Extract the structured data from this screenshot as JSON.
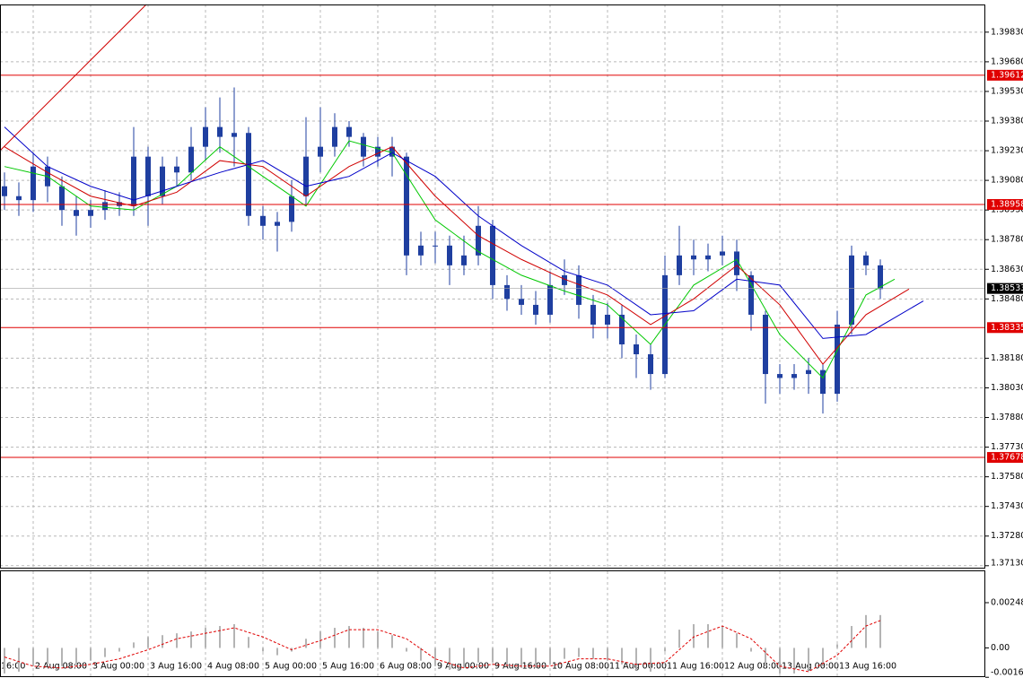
{
  "chart_data": [
    {
      "type": "candlestick",
      "color": "#1f3fa0",
      "open": [
        1.3905,
        1.39,
        1.3898,
        1.3915,
        1.3905,
        1.3893,
        1.389,
        1.3893,
        1.3897,
        1.3895,
        1.392,
        1.39,
        1.3915,
        1.3912,
        1.3925,
        1.3935,
        1.393,
        1.3932,
        1.389,
        1.3885,
        1.3887,
        1.39,
        1.392,
        1.3925,
        1.3935,
        1.393,
        1.392,
        1.3925,
        1.392,
        1.387,
        1.3875,
        1.3875,
        1.3865,
        1.387,
        1.3885,
        1.3855,
        1.3848,
        1.3845,
        1.384,
        1.3855,
        1.386,
        1.3845,
        1.3835,
        1.384,
        1.3825,
        1.382,
        1.381,
        1.386,
        1.387,
        1.3868,
        1.387,
        1.3872,
        1.386,
        1.384,
        1.381,
        1.3808,
        1.381,
        1.3812,
        1.38,
        1.3835,
        1.387,
        1.3865
      ],
      "high": [
        1.3912,
        1.3907,
        1.3922,
        1.392,
        1.391,
        1.39,
        1.3898,
        1.3903,
        1.3902,
        1.3935,
        1.3925,
        1.392,
        1.392,
        1.3935,
        1.3945,
        1.395,
        1.3955,
        1.3935,
        1.3895,
        1.3892,
        1.3908,
        1.394,
        1.3945,
        1.3942,
        1.3938,
        1.3932,
        1.393,
        1.393,
        1.3922,
        1.3882,
        1.3882,
        1.388,
        1.388,
        1.3895,
        1.3888,
        1.386,
        1.3855,
        1.3852,
        1.3862,
        1.3868,
        1.3865,
        1.385,
        1.3846,
        1.3845,
        1.383,
        1.3825,
        1.387,
        1.3885,
        1.3878,
        1.3876,
        1.388,
        1.3878,
        1.3862,
        1.3842,
        1.3815,
        1.3815,
        1.3818,
        1.3815,
        1.3842,
        1.3875,
        1.3872,
        1.3868
      ],
      "low": [
        1.3893,
        1.389,
        1.3892,
        1.3897,
        1.3885,
        1.388,
        1.3884,
        1.3888,
        1.389,
        1.389,
        1.3885,
        1.3896,
        1.3905,
        1.3908,
        1.3918,
        1.3922,
        1.3915,
        1.3885,
        1.3878,
        1.3872,
        1.3882,
        1.3895,
        1.3912,
        1.392,
        1.3925,
        1.3915,
        1.3915,
        1.391,
        1.386,
        1.3865,
        1.3866,
        1.3855,
        1.386,
        1.3865,
        1.3848,
        1.3842,
        1.384,
        1.3835,
        1.3836,
        1.385,
        1.3838,
        1.3828,
        1.3828,
        1.3818,
        1.3808,
        1.3802,
        1.3808,
        1.3855,
        1.386,
        1.3862,
        1.3865,
        1.3852,
        1.3832,
        1.3795,
        1.38,
        1.3802,
        1.38,
        1.379,
        1.3796,
        1.383,
        1.386,
        1.3848
      ],
      "close": [
        1.39,
        1.3898,
        1.3915,
        1.3905,
        1.3893,
        1.389,
        1.3893,
        1.3897,
        1.3895,
        1.392,
        1.39,
        1.3915,
        1.3912,
        1.3925,
        1.3935,
        1.393,
        1.3932,
        1.389,
        1.3885,
        1.3887,
        1.39,
        1.392,
        1.3925,
        1.3935,
        1.393,
        1.392,
        1.3925,
        1.392,
        1.387,
        1.3875,
        1.3875,
        1.3865,
        1.387,
        1.3885,
        1.3855,
        1.3848,
        1.3845,
        1.384,
        1.3855,
        1.386,
        1.3845,
        1.3835,
        1.384,
        1.3825,
        1.382,
        1.381,
        1.386,
        1.387,
        1.3868,
        1.387,
        1.3872,
        1.386,
        1.384,
        1.381,
        1.3808,
        1.381,
        1.3812,
        1.38,
        1.3835,
        1.387,
        1.3865,
        1.3853
      ],
      "xlim": [
        -0.3125,
        68.3125
      ],
      "xticks": [
        {
          "value": -2,
          "label": "16:00"
        },
        {
          "value": 2,
          "label": "2 Aug 08:00"
        },
        {
          "value": 6,
          "label": "3 Aug 00:00"
        },
        {
          "value": 10,
          "label": "3 Aug 16:00"
        },
        {
          "value": 14,
          "label": "4 Aug 08:00"
        },
        {
          "value": 18,
          "label": "5 Aug 00:00"
        },
        {
          "value": 22,
          "label": "5 Aug 16:00"
        },
        {
          "value": 26,
          "label": "6 Aug 08:00"
        },
        {
          "value": 30,
          "label": "9 Aug 00:00"
        },
        {
          "value": 34,
          "label": "9 Aug 16:00"
        },
        {
          "value": 38,
          "label": "10 Aug 08:00"
        },
        {
          "value": 42,
          "label": "11 Aug 00:00"
        },
        {
          "value": 46,
          "label": "11 Aug 16:00"
        },
        {
          "value": 50,
          "label": "12 Aug 08:00"
        },
        {
          "value": 54,
          "label": "13 Aug 00:00"
        },
        {
          "value": 58,
          "label": "13 Aug 16:00"
        }
      ],
      "ylim": [
        1.3712,
        1.3997
      ],
      "yticks": [
        {
          "value": 1.3983,
          "label": "1.39830"
        },
        {
          "value": 1.3968,
          "label": "1.39680"
        },
        {
          "value": 1.3953,
          "label": "1.39530"
        },
        {
          "value": 1.3938,
          "label": "1.39380"
        },
        {
          "value": 1.3923,
          "label": "1.39230"
        },
        {
          "value": 1.3908,
          "label": "1.39080"
        },
        {
          "value": 1.3893,
          "label": "1.38930"
        },
        {
          "value": 1.3878,
          "label": "1.38780"
        },
        {
          "value": 1.3863,
          "label": "1.38630"
        },
        {
          "value": 1.3848,
          "label": "1.38480"
        },
        {
          "value": 1.3818,
          "label": "1.38180"
        },
        {
          "value": 1.3803,
          "label": "1.38030"
        },
        {
          "value": 1.3788,
          "label": "1.37880"
        },
        {
          "value": 1.3773,
          "label": "1.37730"
        },
        {
          "value": 1.3758,
          "label": "1.37580"
        },
        {
          "value": 1.3743,
          "label": "1.37430"
        },
        {
          "value": 1.3728,
          "label": "1.37280"
        },
        {
          "value": 1.3713,
          "label": "1.37130"
        }
      ],
      "grid": true,
      "moving_averages": [
        {
          "color": "#00c800",
          "x": [
            0,
            3,
            6,
            9,
            12,
            15,
            18,
            21,
            24,
            27,
            30,
            33,
            36,
            39,
            42,
            45,
            48,
            51,
            54,
            57,
            60,
            62
          ],
          "values": [
            1.3915,
            1.391,
            1.3895,
            1.3893,
            1.3905,
            1.3925,
            1.391,
            1.3895,
            1.3928,
            1.3922,
            1.3888,
            1.3872,
            1.386,
            1.3852,
            1.3845,
            1.3825,
            1.3855,
            1.3868,
            1.383,
            1.3808,
            1.385,
            1.3858
          ]
        },
        {
          "color": "#d00000",
          "x": [
            0,
            3,
            6,
            9,
            12,
            15,
            18,
            21,
            24,
            27,
            30,
            33,
            36,
            39,
            42,
            45,
            48,
            51,
            54,
            57,
            60,
            63
          ],
          "values": [
            1.3925,
            1.3912,
            1.39,
            1.3895,
            1.3902,
            1.3918,
            1.3915,
            1.39,
            1.3915,
            1.3925,
            1.39,
            1.388,
            1.3868,
            1.3858,
            1.385,
            1.3835,
            1.3848,
            1.3865,
            1.3845,
            1.3815,
            1.384,
            1.3853
          ]
        },
        {
          "color": "#0000c8",
          "x": [
            0,
            3,
            6,
            9,
            12,
            15,
            18,
            21,
            24,
            27,
            30,
            33,
            36,
            39,
            42,
            45,
            48,
            51,
            54,
            57,
            60,
            64
          ],
          "values": [
            1.3935,
            1.3915,
            1.3905,
            1.3898,
            1.3905,
            1.3912,
            1.3918,
            1.3905,
            1.391,
            1.3922,
            1.391,
            1.389,
            1.3875,
            1.3862,
            1.3855,
            1.384,
            1.3842,
            1.3858,
            1.3855,
            1.3828,
            1.383,
            1.3847
          ]
        }
      ],
      "levels": [
        1.39612,
        1.38958,
        1.38335,
        1.37678
      ],
      "level_color": "#e00000",
      "last_price": 1.38533
    },
    {
      "type": "oscillator",
      "color": "#b4b4b4",
      "values": [
        -0.0014,
        -0.0013,
        -0.001,
        -0.0009,
        -0.001,
        -0.0009,
        -0.0007,
        -0.0005,
        -0.0002,
        0.0003,
        0.0006,
        0.0007,
        0.0008,
        0.0009,
        0.0011,
        0.0012,
        0.0013,
        0.0006,
        -0.0002,
        -0.0004,
        -0.0002,
        0.0005,
        0.0009,
        0.0011,
        0.0012,
        0.0011,
        0.0009,
        0.0007,
        -0.0002,
        -0.0007,
        -0.001,
        -0.0012,
        -0.0011,
        -0.0008,
        -0.0008,
        -0.001,
        -0.0011,
        -0.0011,
        -0.0009,
        -0.0006,
        -0.0005,
        -0.0006,
        -0.0007,
        -0.0009,
        -0.0011,
        -0.0013,
        -0.0002,
        0.001,
        0.0013,
        0.0013,
        0.0012,
        0.0008,
        -0.0002,
        -0.001,
        -0.0014,
        -0.0014,
        -0.0012,
        -0.001,
        0.0002,
        0.0012,
        0.0018,
        0.0018
      ],
      "signal": {
        "color": "#e00000",
        "x": [
          0,
          2,
          4,
          6,
          8,
          10,
          12,
          14,
          16,
          18,
          20,
          22,
          24,
          26,
          28,
          30,
          32,
          34,
          36,
          38,
          40,
          42,
          44,
          46,
          48,
          50,
          52,
          54,
          56,
          58,
          60,
          61
        ],
        "values": [
          -0.0005,
          -0.001,
          -0.0011,
          -0.0009,
          -0.0006,
          -0.0001,
          0.0005,
          0.0008,
          0.0011,
          0.0006,
          -0.0001,
          0.0004,
          0.001,
          0.001,
          0.0005,
          -0.0006,
          -0.0011,
          -0.0009,
          -0.001,
          -0.001,
          -0.0006,
          -0.0006,
          -0.0009,
          -0.0008,
          0.0006,
          0.0012,
          0.0005,
          -0.001,
          -0.0013,
          -0.0004,
          0.0012,
          0.0015
        ]
      },
      "ylim": [
        -0.0016,
        0.0042
      ],
      "yticks": [
        0.00248,
        {
          "value": 0,
          "label": "0.00"
        },
        -0.00161
      ]
    }
  ]
}
